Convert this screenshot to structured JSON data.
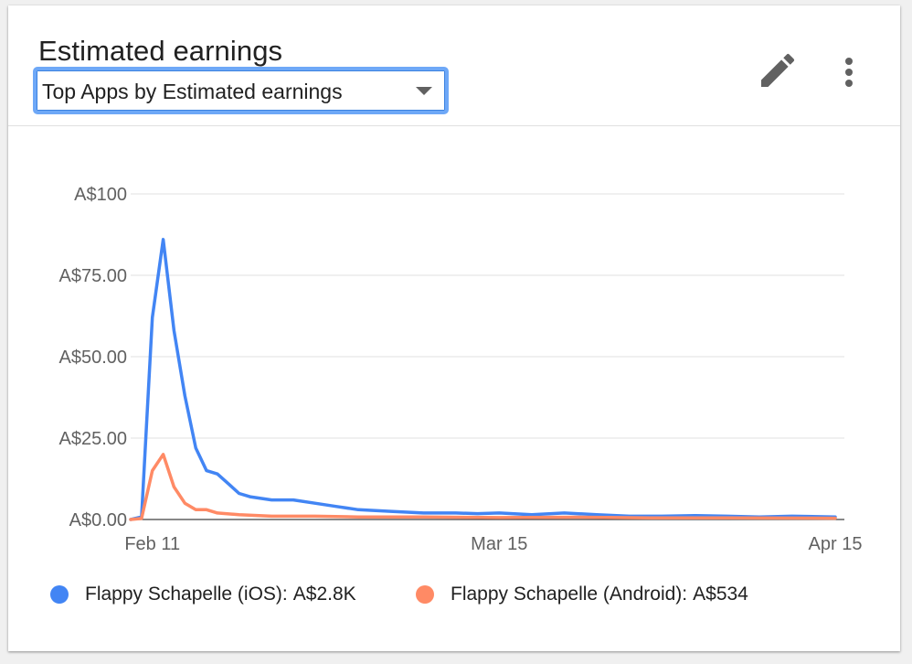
{
  "card": {
    "title": "Estimated earnings",
    "selector_label": "Top Apps by Estimated earnings",
    "edit_icon": "pencil-icon",
    "more_icon": "more-vert-icon"
  },
  "colors": {
    "ios": "#4285f4",
    "android": "#ff8a65",
    "grid": "#e0e0e0",
    "axis_text": "#616161",
    "selector_border": "#6ea8f7"
  },
  "legend": [
    {
      "label": "Flappy Schapelle (iOS):",
      "value": "A$2.8K",
      "color": "#4285f4"
    },
    {
      "label": "Flappy Schapelle (Android):",
      "value": "A$534",
      "color": "#ff8a65"
    }
  ],
  "chart_data": {
    "type": "line",
    "x_range": [
      "2014-02-09",
      "2014-04-15"
    ],
    "x_ticks": [
      {
        "date": "2014-02-11",
        "label": "Feb 11"
      },
      {
        "date": "2014-03-15",
        "label": "Mar 15"
      },
      {
        "date": "2014-04-15",
        "label": "Apr 15"
      }
    ],
    "ylim": [
      0,
      100
    ],
    "y_ticks": [
      {
        "value": 0,
        "label": "A$0.00"
      },
      {
        "value": 25,
        "label": "A$25.00"
      },
      {
        "value": 50,
        "label": "A$50.00"
      },
      {
        "value": 75,
        "label": "A$75.00"
      },
      {
        "value": 100,
        "label": "A$100"
      }
    ],
    "grid": true,
    "legend_position": "bottom",
    "series": [
      {
        "name": "Flappy Schapelle (iOS)",
        "color": "#4285f4",
        "points": [
          [
            "2014-02-09",
            0
          ],
          [
            "2014-02-10",
            0.8
          ],
          [
            "2014-02-11",
            62
          ],
          [
            "2014-02-12",
            86
          ],
          [
            "2014-02-13",
            58
          ],
          [
            "2014-02-14",
            38
          ],
          [
            "2014-02-15",
            22
          ],
          [
            "2014-02-16",
            15
          ],
          [
            "2014-02-17",
            14
          ],
          [
            "2014-02-18",
            11
          ],
          [
            "2014-02-19",
            8
          ],
          [
            "2014-02-20",
            7
          ],
          [
            "2014-02-22",
            6
          ],
          [
            "2014-02-24",
            6
          ],
          [
            "2014-02-26",
            5
          ],
          [
            "2014-02-28",
            4
          ],
          [
            "2014-03-02",
            3
          ],
          [
            "2014-03-05",
            2.5
          ],
          [
            "2014-03-08",
            2
          ],
          [
            "2014-03-11",
            2
          ],
          [
            "2014-03-13",
            1.8
          ],
          [
            "2014-03-15",
            2
          ],
          [
            "2014-03-18",
            1.5
          ],
          [
            "2014-03-21",
            2
          ],
          [
            "2014-03-24",
            1.5
          ],
          [
            "2014-03-27",
            1
          ],
          [
            "2014-03-30",
            1
          ],
          [
            "2014-04-02",
            1.2
          ],
          [
            "2014-04-05",
            1
          ],
          [
            "2014-04-08",
            0.8
          ],
          [
            "2014-04-11",
            1
          ],
          [
            "2014-04-15",
            0.8
          ]
        ]
      },
      {
        "name": "Flappy Schapelle (Android)",
        "color": "#ff8a65",
        "points": [
          [
            "2014-02-09",
            0
          ],
          [
            "2014-02-10",
            0.3
          ],
          [
            "2014-02-11",
            15
          ],
          [
            "2014-02-12",
            20
          ],
          [
            "2014-02-13",
            10
          ],
          [
            "2014-02-14",
            5
          ],
          [
            "2014-02-15",
            3
          ],
          [
            "2014-02-16",
            3
          ],
          [
            "2014-02-17",
            2
          ],
          [
            "2014-02-19",
            1.5
          ],
          [
            "2014-02-22",
            1
          ],
          [
            "2014-02-26",
            1
          ],
          [
            "2014-03-02",
            0.8
          ],
          [
            "2014-03-08",
            0.8
          ],
          [
            "2014-03-15",
            0.6
          ],
          [
            "2014-03-22",
            0.7
          ],
          [
            "2014-03-29",
            0.5
          ],
          [
            "2014-04-05",
            0.5
          ],
          [
            "2014-04-15",
            0.4
          ]
        ]
      }
    ]
  }
}
